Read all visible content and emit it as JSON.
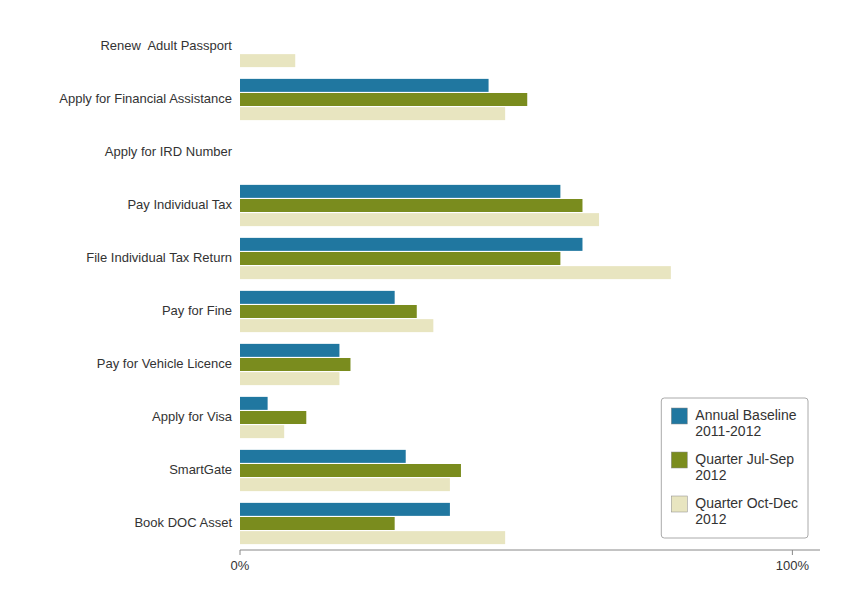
{
  "chart_data": {
    "type": "bar",
    "orientation": "horizontal",
    "categories": [
      "Renew  Adult Passport",
      "Apply for Financial Assistance",
      "Apply for IRD Number",
      "Pay Individual Tax",
      "File Individual Tax Return",
      "Pay for Fine",
      "Pay for Vehicle Licence",
      "Apply for Visa",
      "SmartGate",
      "Book DOC Asset"
    ],
    "series": [
      {
        "name": "Annual Baseline\n2011-2012",
        "color": "#2077A0",
        "values": [
          0,
          45,
          0,
          58,
          62,
          28,
          18,
          5,
          30,
          38
        ]
      },
      {
        "name": "Quarter Jul-Sep\n2012",
        "color": "#7A8C1E",
        "values": [
          0,
          52,
          0,
          62,
          58,
          32,
          20,
          12,
          40,
          28
        ]
      },
      {
        "name": "Quarter Oct-Dec\n2012",
        "color": "#E8E5C0",
        "values": [
          10,
          48,
          0,
          65,
          78,
          35,
          18,
          8,
          38,
          48
        ]
      }
    ],
    "xlim": [
      0,
      105
    ],
    "xticks": [
      {
        "value": 0,
        "label": "0%"
      },
      {
        "value": 100,
        "label": "100%"
      }
    ],
    "grid": false,
    "legend": "lower right"
  }
}
